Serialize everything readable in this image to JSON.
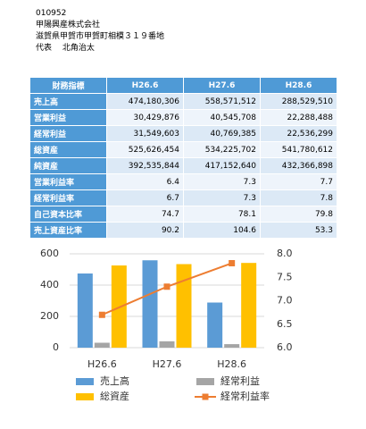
{
  "header": {
    "code": "010952",
    "name": "甲陽興産株式会社",
    "address": "滋賀県甲賀市甲賀町相模３１９番地",
    "representative": "代表　 北角治太"
  },
  "table": {
    "header": [
      "財務指標",
      "H26.6",
      "H27.6",
      "H28.6"
    ],
    "rows": [
      [
        "売上高",
        "474,180,306",
        "558,571,512",
        "288,529,510"
      ],
      [
        "営業利益",
        "30,429,876",
        "40,545,708",
        "22,288,488"
      ],
      [
        "経常利益",
        "31,549,603",
        "40,769,385",
        "22,536,299"
      ],
      [
        "総資産",
        "525,626,454",
        "534,225,702",
        "541,780,612"
      ],
      [
        "純資産",
        "392,535,844",
        "417,152,640",
        "432,366,898"
      ],
      [
        "営業利益率",
        "6.4",
        "7.3",
        "7.7"
      ],
      [
        "経常利益率",
        "6.7",
        "7.3",
        "7.8"
      ],
      [
        "自己資本比率",
        "74.7",
        "78.1",
        "79.8"
      ],
      [
        "売上資産比率",
        "90.2",
        "104.6",
        "53.3"
      ]
    ]
  },
  "chart_data": {
    "type": "bar",
    "categories": [
      "H26.6",
      "H27.6",
      "H28.6"
    ],
    "series": [
      {
        "name": "売上高",
        "color": "#5b9bd5",
        "values": [
          474.2,
          558.6,
          288.5
        ]
      },
      {
        "name": "経常利益",
        "color": "#a5a5a5",
        "values": [
          31.5,
          40.8,
          22.5
        ]
      },
      {
        "name": "総資産",
        "color": "#ffc000",
        "values": [
          525.6,
          534.2,
          541.8
        ]
      },
      {
        "name": "経常利益率",
        "color": "#ed7d31",
        "type": "line",
        "axis": "y2",
        "values": [
          6.7,
          7.3,
          7.8
        ]
      }
    ],
    "ylim": [
      0,
      600
    ],
    "yticks": [
      0,
      200,
      400,
      600
    ],
    "y2lim": [
      6,
      8
    ],
    "y2ticks": [
      {
        "value": 6,
        "label": "6.0"
      },
      6.5,
      {
        "value": 7,
        "label": "7.0"
      },
      7.5,
      {
        "value": 8,
        "label": "8.0"
      }
    ],
    "grid": true
  }
}
